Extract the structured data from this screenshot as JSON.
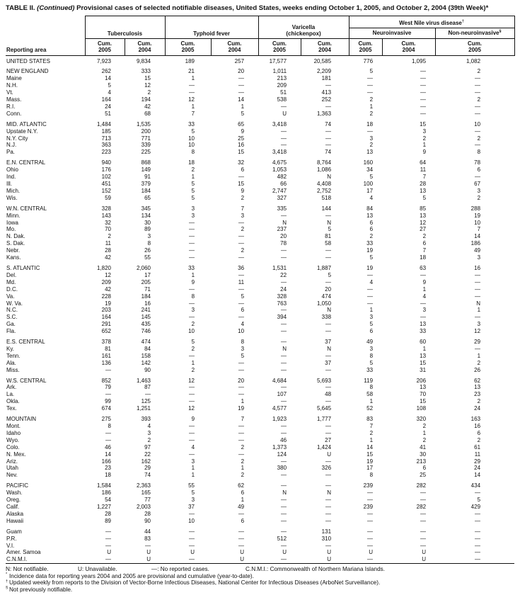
{
  "title": {
    "table_label": "TABLE II.",
    "continued": "(Continued)",
    "text": "Provisional cases of selected notifiable diseases, United States, weeks ending October 1, 2005, and October 2, 2004 (39th Week)*"
  },
  "header": {
    "reporting_area": "Reporting area",
    "groups": {
      "tuberculosis": "Tuberculosis",
      "typhoid": "Typhoid fever",
      "varicella_line1": "Varicella",
      "varicella_line2": "(chickenpox)",
      "wnv": "West Nile virus disease",
      "wnv_sup": "†",
      "neuro": "Neuroinvasive",
      "nonneuro": "Non-neuroinvasive",
      "nonneuro_sup": "§"
    },
    "cum": "Cum.",
    "col_years": [
      "2005",
      "2004",
      "2005",
      "2004",
      "2005",
      "2004",
      "2005",
      "2004",
      "2005"
    ]
  },
  "table": {
    "sections": [
      {
        "rows": [
          [
            "UNITED STATES",
            "7,923",
            "9,834",
            "189",
            "257",
            "17,577",
            "20,585",
            "776",
            "1,095",
            "1,082"
          ]
        ]
      },
      {
        "rows": [
          [
            "NEW ENGLAND",
            "262",
            "333",
            "21",
            "20",
            "1,011",
            "2,209",
            "5",
            "—",
            "2"
          ],
          [
            "Maine",
            "14",
            "15",
            "1",
            "—",
            "213",
            "181",
            "—",
            "—",
            "—"
          ],
          [
            "N.H.",
            "5",
            "12",
            "—",
            "—",
            "209",
            "—",
            "—",
            "—",
            "—"
          ],
          [
            "Vt.",
            "4",
            "2",
            "—",
            "—",
            "51",
            "413",
            "—",
            "—",
            "—"
          ],
          [
            "Mass.",
            "164",
            "194",
            "12",
            "14",
            "538",
            "252",
            "2",
            "—",
            "2"
          ],
          [
            "R.I.",
            "24",
            "42",
            "1",
            "1",
            "—",
            "—",
            "1",
            "—",
            "—"
          ],
          [
            "Conn.",
            "51",
            "68",
            "7",
            "5",
            "U",
            "1,363",
            "2",
            "—",
            "—"
          ]
        ]
      },
      {
        "rows": [
          [
            "MID. ATLANTIC",
            "1,484",
            "1,535",
            "33",
            "65",
            "3,418",
            "74",
            "18",
            "15",
            "10"
          ],
          [
            "Upstate N.Y.",
            "185",
            "200",
            "5",
            "9",
            "—",
            "—",
            "—",
            "3",
            "—"
          ],
          [
            "N.Y. City",
            "713",
            "771",
            "10",
            "25",
            "—",
            "—",
            "3",
            "2",
            "2"
          ],
          [
            "N.J.",
            "363",
            "339",
            "10",
            "16",
            "—",
            "—",
            "2",
            "1",
            "—"
          ],
          [
            "Pa.",
            "223",
            "225",
            "8",
            "15",
            "3,418",
            "74",
            "13",
            "9",
            "8"
          ]
        ]
      },
      {
        "rows": [
          [
            "E.N. CENTRAL",
            "940",
            "868",
            "18",
            "32",
            "4,675",
            "8,764",
            "160",
            "64",
            "78"
          ],
          [
            "Ohio",
            "176",
            "149",
            "2",
            "6",
            "1,053",
            "1,086",
            "34",
            "11",
            "6"
          ],
          [
            "Ind.",
            "102",
            "91",
            "1",
            "—",
            "482",
            "N",
            "5",
            "7",
            "—"
          ],
          [
            "Ill.",
            "451",
            "379",
            "5",
            "15",
            "66",
            "4,408",
            "100",
            "28",
            "67"
          ],
          [
            "Mich.",
            "152",
            "184",
            "5",
            "9",
            "2,747",
            "2,752",
            "17",
            "13",
            "3"
          ],
          [
            "Wis.",
            "59",
            "65",
            "5",
            "2",
            "327",
            "518",
            "4",
            "5",
            "2"
          ]
        ]
      },
      {
        "rows": [
          [
            "W.N. CENTRAL",
            "328",
            "345",
            "3",
            "7",
            "335",
            "144",
            "84",
            "85",
            "288"
          ],
          [
            "Minn.",
            "143",
            "134",
            "3",
            "3",
            "—",
            "—",
            "13",
            "13",
            "19"
          ],
          [
            "Iowa",
            "32",
            "30",
            "—",
            "—",
            "N",
            "N",
            "6",
            "12",
            "10"
          ],
          [
            "Mo.",
            "70",
            "89",
            "—",
            "2",
            "237",
            "5",
            "6",
            "27",
            "7"
          ],
          [
            "N. Dak.",
            "2",
            "3",
            "—",
            "—",
            "20",
            "81",
            "2",
            "2",
            "14"
          ],
          [
            "S. Dak.",
            "11",
            "8",
            "—",
            "—",
            "78",
            "58",
            "33",
            "6",
            "186"
          ],
          [
            "Nebr.",
            "28",
            "26",
            "—",
            "2",
            "—",
            "—",
            "19",
            "7",
            "49"
          ],
          [
            "Kans.",
            "42",
            "55",
            "—",
            "—",
            "—",
            "—",
            "5",
            "18",
            "3"
          ]
        ]
      },
      {
        "rows": [
          [
            "S. ATLANTIC",
            "1,820",
            "2,060",
            "33",
            "36",
            "1,531",
            "1,887",
            "19",
            "63",
            "16"
          ],
          [
            "Del.",
            "12",
            "17",
            "1",
            "—",
            "22",
            "5",
            "—",
            "—",
            "—"
          ],
          [
            "Md.",
            "209",
            "205",
            "9",
            "11",
            "—",
            "—",
            "4",
            "9",
            "—"
          ],
          [
            "D.C.",
            "42",
            "71",
            "—",
            "—",
            "24",
            "20",
            "—",
            "1",
            "—"
          ],
          [
            "Va.",
            "228",
            "184",
            "8",
            "5",
            "328",
            "474",
            "—",
            "4",
            "—"
          ],
          [
            "W. Va.",
            "19",
            "16",
            "—",
            "—",
            "763",
            "1,050",
            "—",
            "—",
            "N"
          ],
          [
            "N.C.",
            "203",
            "241",
            "3",
            "6",
            "—",
            "N",
            "1",
            "3",
            "1"
          ],
          [
            "S.C.",
            "164",
            "145",
            "—",
            "—",
            "394",
            "338",
            "3",
            "—",
            "—"
          ],
          [
            "Ga.",
            "291",
            "435",
            "2",
            "4",
            "—",
            "—",
            "5",
            "13",
            "3"
          ],
          [
            "Fla.",
            "652",
            "746",
            "10",
            "10",
            "—",
            "—",
            "6",
            "33",
            "12"
          ]
        ]
      },
      {
        "rows": [
          [
            "E.S. CENTRAL",
            "378",
            "474",
            "5",
            "8",
            "—",
            "37",
            "49",
            "60",
            "29"
          ],
          [
            "Ky.",
            "81",
            "84",
            "2",
            "3",
            "N",
            "N",
            "3",
            "1",
            "—"
          ],
          [
            "Tenn.",
            "161",
            "158",
            "—",
            "5",
            "—",
            "—",
            "8",
            "13",
            "1"
          ],
          [
            "Ala.",
            "136",
            "142",
            "1",
            "—",
            "—",
            "37",
            "5",
            "15",
            "2"
          ],
          [
            "Miss.",
            "—",
            "90",
            "2",
            "—",
            "—",
            "—",
            "33",
            "31",
            "26"
          ]
        ]
      },
      {
        "rows": [
          [
            "W.S. CENTRAL",
            "852",
            "1,463",
            "12",
            "20",
            "4,684",
            "5,693",
            "119",
            "206",
            "62"
          ],
          [
            "Ark.",
            "79",
            "87",
            "—",
            "—",
            "—",
            "—",
            "8",
            "13",
            "13"
          ],
          [
            "La.",
            "—",
            "—",
            "—",
            "—",
            "107",
            "48",
            "58",
            "70",
            "23"
          ],
          [
            "Okla.",
            "99",
            "125",
            "—",
            "1",
            "—",
            "—",
            "1",
            "15",
            "2"
          ],
          [
            "Tex.",
            "674",
            "1,251",
            "12",
            "19",
            "4,577",
            "5,645",
            "52",
            "108",
            "24"
          ]
        ]
      },
      {
        "rows": [
          [
            "MOUNTAIN",
            "275",
            "393",
            "9",
            "7",
            "1,923",
            "1,777",
            "83",
            "320",
            "163"
          ],
          [
            "Mont.",
            "8",
            "4",
            "—",
            "—",
            "—",
            "—",
            "7",
            "2",
            "16"
          ],
          [
            "Idaho",
            "—",
            "3",
            "—",
            "—",
            "—",
            "—",
            "2",
            "1",
            "6"
          ],
          [
            "Wyo.",
            "—",
            "2",
            "—",
            "—",
            "46",
            "27",
            "1",
            "2",
            "2"
          ],
          [
            "Colo.",
            "46",
            "97",
            "4",
            "2",
            "1,373",
            "1,424",
            "14",
            "41",
            "61"
          ],
          [
            "N. Mex.",
            "14",
            "22",
            "—",
            "—",
            "124",
            "U",
            "15",
            "30",
            "11"
          ],
          [
            "Ariz.",
            "166",
            "162",
            "3",
            "2",
            "—",
            "—",
            "19",
            "213",
            "29"
          ],
          [
            "Utah",
            "23",
            "29",
            "1",
            "1",
            "380",
            "326",
            "17",
            "6",
            "24"
          ],
          [
            "Nev.",
            "18",
            "74",
            "1",
            "2",
            "—",
            "—",
            "8",
            "25",
            "14"
          ]
        ]
      },
      {
        "rows": [
          [
            "PACIFIC",
            "1,584",
            "2,363",
            "55",
            "62",
            "—",
            "—",
            "239",
            "282",
            "434"
          ],
          [
            "Wash.",
            "186",
            "165",
            "5",
            "6",
            "N",
            "N",
            "—",
            "—",
            "—"
          ],
          [
            "Oreg.",
            "54",
            "77",
            "3",
            "1",
            "—",
            "—",
            "—",
            "—",
            "5"
          ],
          [
            "Calif.",
            "1,227",
            "2,003",
            "37",
            "49",
            "—",
            "—",
            "239",
            "282",
            "429"
          ],
          [
            "Alaska",
            "28",
            "28",
            "—",
            "—",
            "—",
            "—",
            "—",
            "—",
            "—"
          ],
          [
            "Hawaii",
            "89",
            "90",
            "10",
            "6",
            "—",
            "—",
            "—",
            "—",
            "—"
          ]
        ]
      },
      {
        "rows": [
          [
            "Guam",
            "—",
            "44",
            "—",
            "—",
            "—",
            "131",
            "—",
            "—",
            "—"
          ],
          [
            "P.R.",
            "—",
            "83",
            "—",
            "—",
            "512",
            "310",
            "—",
            "—",
            "—"
          ],
          [
            "V.I.",
            "—",
            "—",
            "—",
            "—",
            "—",
            "—",
            "—",
            "—",
            "—"
          ],
          [
            "Amer. Samoa",
            "U",
            "U",
            "U",
            "U",
            "U",
            "U",
            "U",
            "U",
            "—"
          ],
          [
            "C.N.M.I.",
            "—",
            "U",
            "—",
            "U",
            "—",
            "U",
            "—",
            "U",
            "—"
          ]
        ]
      }
    ]
  },
  "footnotes": {
    "legend": [
      "N: Not notifiable.",
      "U: Unavailable.",
      "—: No reported cases.",
      "C.N.M.I.: Commonwealth of Northern Mariana Islands."
    ],
    "notes": [
      {
        "marker": "*",
        "text": "Incidence data for reporting years 2004 and 2005 are provisional and cumulative (year-to-date)."
      },
      {
        "marker": "†",
        "text": "Updated weekly from reports to the Division of Vector-Borne Infectious Diseases, National Center for Infectious Diseases (ArboNet Surveillance)."
      },
      {
        "marker": "§",
        "text": "Not previously notifiable."
      }
    ]
  }
}
